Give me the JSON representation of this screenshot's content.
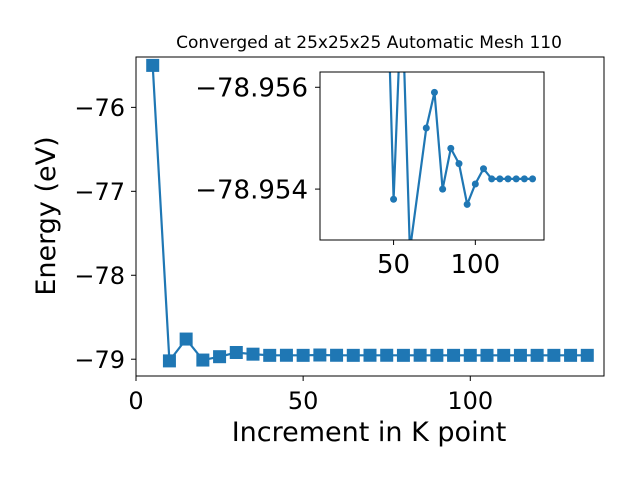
{
  "chart_data": [
    {
      "type": "line",
      "title": "Converged at 25x25x25 Automatic Mesh 110",
      "xlabel": "Increment in K point",
      "ylabel": "Energy (eV)",
      "xlim": [
        0,
        140
      ],
      "ylim": [
        -79.2,
        -75.4
      ],
      "xticks": [
        0,
        50,
        100
      ],
      "xtick_labels": [
        "0",
        "50",
        "100"
      ],
      "yticks": [
        -76,
        -77,
        -78,
        -79
      ],
      "ytick_labels": [
        "−76",
        "−77",
        "−78",
        "−79"
      ],
      "marker": "square",
      "color": "#1f77b4",
      "x": [
        5,
        10,
        15,
        20,
        25,
        30,
        35,
        40,
        45,
        50,
        55,
        60,
        65,
        70,
        75,
        80,
        85,
        90,
        95,
        100,
        105,
        110,
        115,
        120,
        125,
        130,
        135
      ],
      "y": [
        -75.5,
        -79.02,
        -78.76,
        -79.01,
        -78.97,
        -78.92,
        -78.94,
        -78.954,
        -78.953,
        -78.954,
        -78.95,
        -78.953,
        -78.954,
        -78.953,
        -78.953,
        -78.954,
        -78.953,
        -78.954,
        -78.954,
        -78.954,
        -78.954,
        -78.954,
        -78.954,
        -78.954,
        -78.954,
        -78.954,
        -78.954
      ]
    },
    {
      "type": "line",
      "title": "",
      "xlim": [
        5,
        142
      ],
      "ylim": [
        -78.953,
        -78.9563
      ],
      "xticks": [
        50,
        100
      ],
      "xtick_labels": [
        "50",
        "100"
      ],
      "yticks": [
        -78.956,
        -78.954
      ],
      "ytick_labels": [
        "−78.956",
        "−78.954"
      ],
      "marker": "circle",
      "color": "#1f77b4",
      "x": [
        45,
        50,
        55,
        60,
        70,
        75,
        80,
        85,
        90,
        95,
        100,
        105,
        110,
        115,
        120,
        125,
        130,
        135
      ],
      "y": [
        -78.9594,
        -78.9538,
        -78.9579,
        -78.9528,
        -78.9552,
        -78.9559,
        -78.954,
        -78.9548,
        -78.9545,
        -78.9537,
        -78.9541,
        -78.9544,
        -78.9542,
        -78.9542,
        -78.9542,
        -78.9542,
        -78.9542,
        -78.9542
      ]
    }
  ]
}
